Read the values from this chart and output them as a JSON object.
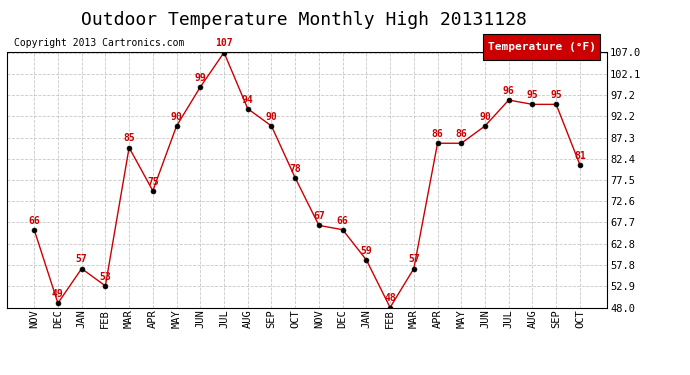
{
  "title": "Outdoor Temperature Monthly High 20131128",
  "copyright": "Copyright 2013 Cartronics.com",
  "legend_label": "Temperature (°F)",
  "x_labels": [
    "NOV",
    "DEC",
    "JAN",
    "FEB",
    "MAR",
    "APR",
    "MAY",
    "JUN",
    "JUL",
    "AUG",
    "SEP",
    "OCT",
    "NOV",
    "DEC",
    "JAN",
    "FEB",
    "MAR",
    "APR",
    "MAY",
    "JUN",
    "JUL",
    "AUG",
    "SEP",
    "OCT"
  ],
  "y_values": [
    66,
    49,
    57,
    53,
    85,
    75,
    90,
    99,
    107,
    94,
    90,
    78,
    67,
    66,
    59,
    48,
    57,
    86,
    86,
    90,
    96,
    95,
    95,
    81
  ],
  "line_color": "#cc0000",
  "bg_color": "#ffffff",
  "grid_color": "#bbbbbb",
  "ylim_min": 48.0,
  "ylim_max": 107.0,
  "yticks": [
    48.0,
    52.9,
    57.8,
    62.8,
    67.7,
    72.6,
    77.5,
    82.4,
    87.3,
    92.2,
    97.2,
    102.1,
    107.0
  ],
  "title_fontsize": 13,
  "copyright_fontsize": 7,
  "legend_bg": "#cc0000",
  "legend_text_color": "#ffffff",
  "annotation_fontsize": 7,
  "tick_label_fontsize": 7.5
}
